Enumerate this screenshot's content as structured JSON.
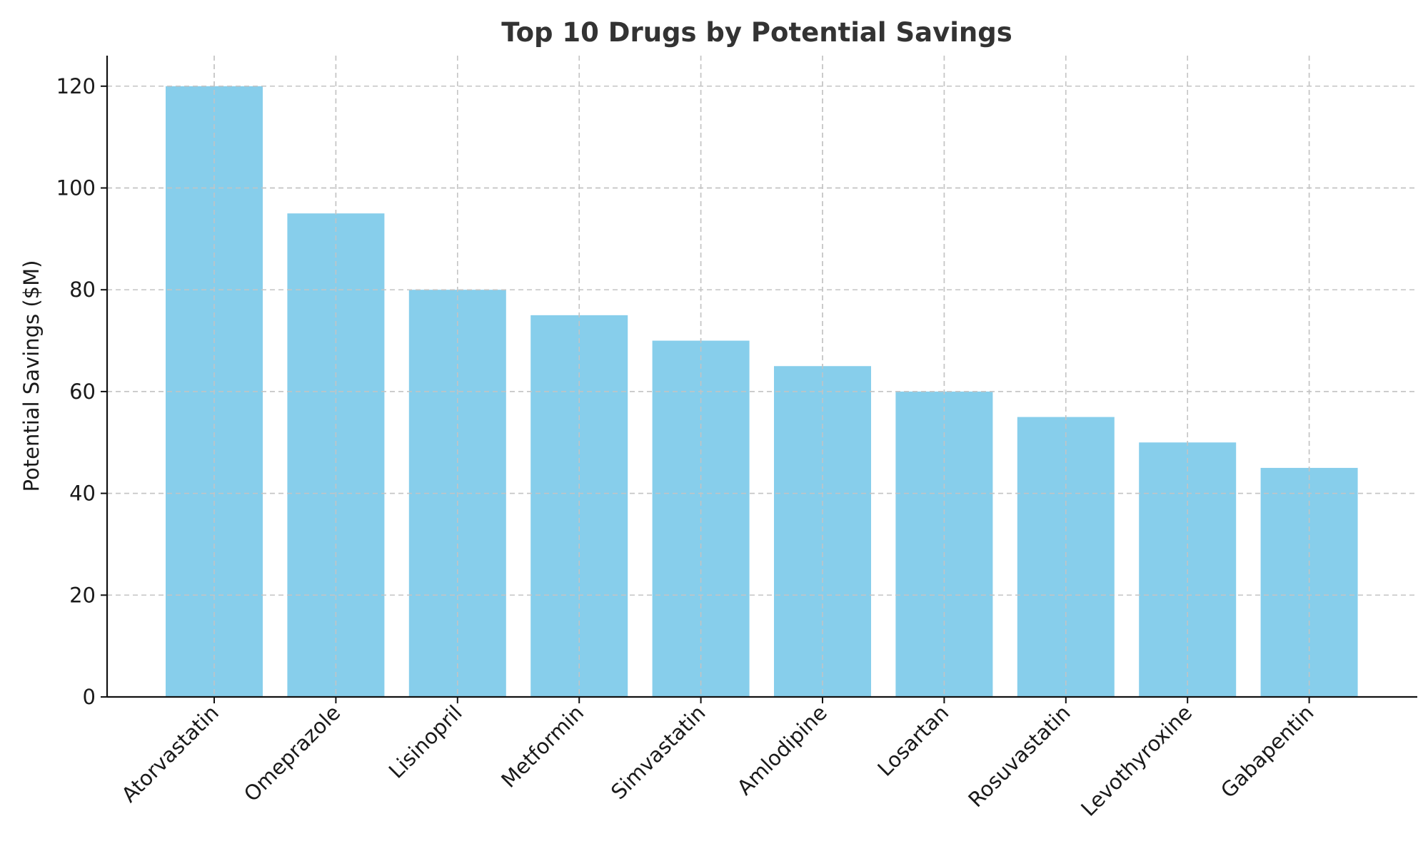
{
  "chart_data": {
    "type": "bar",
    "title": "Top 10 Drugs by Potential Savings",
    "xlabel": "",
    "ylabel": "Potential Savings ($M)",
    "categories": [
      "Atorvastatin",
      "Omeprazole",
      "Lisinopril",
      "Metformin",
      "Simvastatin",
      "Amlodipine",
      "Losartan",
      "Rosuvastatin",
      "Levothyroxine",
      "Gabapentin"
    ],
    "values": [
      120,
      95,
      80,
      75,
      70,
      65,
      60,
      55,
      50,
      45
    ],
    "ylim": [
      0,
      126
    ],
    "yticks": [
      0,
      20,
      40,
      60,
      80,
      100,
      120
    ],
    "grid": true,
    "bar_color": "#87ceeb"
  }
}
